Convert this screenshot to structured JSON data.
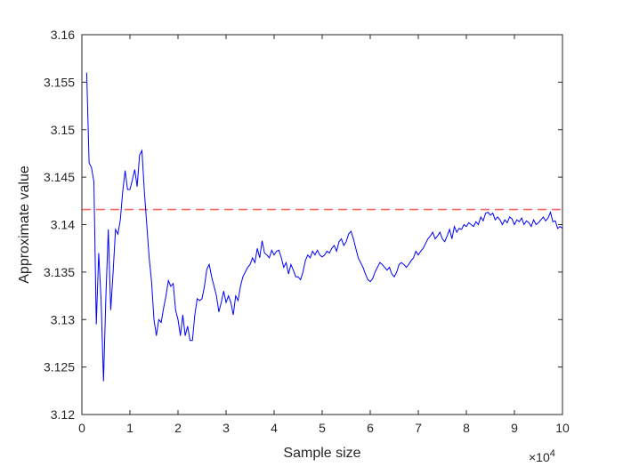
{
  "chart_data": {
    "type": "line",
    "title": "",
    "xlabel": "Sample size",
    "ylabel": "Approximate value",
    "x_exponent_base": "×10",
    "x_exponent_power": "4",
    "xlim": [
      0,
      100000
    ],
    "ylim": [
      3.12,
      3.16
    ],
    "x_ticks": [
      0,
      10000,
      20000,
      30000,
      40000,
      50000,
      60000,
      70000,
      80000,
      90000,
      100000
    ],
    "x_tick_labels": [
      "0",
      "1",
      "2",
      "3",
      "4",
      "5",
      "6",
      "7",
      "8",
      "9",
      "10"
    ],
    "y_ticks": [
      3.12,
      3.125,
      3.13,
      3.135,
      3.14,
      3.145,
      3.15,
      3.155,
      3.16
    ],
    "y_tick_labels": [
      "3.12",
      "3.125",
      "3.13",
      "3.135",
      "3.14",
      "3.145",
      "3.15",
      "3.155",
      "3.16"
    ],
    "grid": false,
    "legend": "none",
    "series": [
      {
        "color": "#0000ff",
        "style": "solid",
        "points": [
          [
            1000,
            3.156
          ],
          [
            1500,
            3.1465
          ],
          [
            2000,
            3.146
          ],
          [
            2500,
            3.1445
          ],
          [
            3000,
            3.1295
          ],
          [
            3500,
            3.137
          ],
          [
            4000,
            3.132
          ],
          [
            4500,
            3.1235
          ],
          [
            5000,
            3.1325
          ],
          [
            5500,
            3.1395
          ],
          [
            6000,
            3.131
          ],
          [
            6500,
            3.135
          ],
          [
            7000,
            3.1395
          ],
          [
            7500,
            3.139
          ],
          [
            8000,
            3.1405
          ],
          [
            8500,
            3.1435
          ],
          [
            9000,
            3.1457
          ],
          [
            9500,
            3.1437
          ],
          [
            10000,
            3.1437
          ],
          [
            10500,
            3.1447
          ],
          [
            11000,
            3.1458
          ],
          [
            11500,
            3.144
          ],
          [
            12000,
            3.1473
          ],
          [
            12500,
            3.1478
          ],
          [
            13000,
            3.1435
          ],
          [
            13500,
            3.14
          ],
          [
            14000,
            3.1365
          ],
          [
            14500,
            3.134
          ],
          [
            15000,
            3.13
          ],
          [
            15500,
            3.1283
          ],
          [
            16000,
            3.13
          ],
          [
            16500,
            3.1297
          ],
          [
            17000,
            3.1312
          ],
          [
            17500,
            3.1325
          ],
          [
            18000,
            3.1341
          ],
          [
            18500,
            3.1335
          ],
          [
            19000,
            3.1338
          ],
          [
            19500,
            3.131
          ],
          [
            20000,
            3.13
          ],
          [
            20500,
            3.1283
          ],
          [
            21000,
            3.1305
          ],
          [
            21500,
            3.1283
          ],
          [
            22000,
            3.1293
          ],
          [
            22500,
            3.1278
          ],
          [
            23000,
            3.1278
          ],
          [
            23500,
            3.1305
          ],
          [
            24000,
            3.1322
          ],
          [
            24500,
            3.132
          ],
          [
            25000,
            3.1322
          ],
          [
            25500,
            3.1335
          ],
          [
            26000,
            3.1353
          ],
          [
            26500,
            3.1358
          ],
          [
            27000,
            3.1345
          ],
          [
            27500,
            3.1335
          ],
          [
            28000,
            3.1325
          ],
          [
            28500,
            3.1308
          ],
          [
            29000,
            3.1318
          ],
          [
            29500,
            3.133
          ],
          [
            30000,
            3.1318
          ],
          [
            30500,
            3.1325
          ],
          [
            31000,
            3.1318
          ],
          [
            31500,
            3.1305
          ],
          [
            32000,
            3.1325
          ],
          [
            32500,
            3.132
          ],
          [
            33000,
            3.1335
          ],
          [
            33500,
            3.1345
          ],
          [
            34000,
            3.135
          ],
          [
            34500,
            3.1355
          ],
          [
            35000,
            3.1358
          ],
          [
            35500,
            3.1365
          ],
          [
            36000,
            3.136
          ],
          [
            36500,
            3.1375
          ],
          [
            37000,
            3.1365
          ],
          [
            37500,
            3.1383
          ],
          [
            38000,
            3.137
          ],
          [
            38500,
            3.1368
          ],
          [
            39000,
            3.1365
          ],
          [
            39500,
            3.1373
          ],
          [
            40000,
            3.1368
          ],
          [
            40500,
            3.1372
          ],
          [
            41000,
            3.1373
          ],
          [
            41500,
            3.1365
          ],
          [
            42000,
            3.1355
          ],
          [
            42500,
            3.136
          ],
          [
            43000,
            3.1348
          ],
          [
            43500,
            3.1358
          ],
          [
            44000,
            3.1352
          ],
          [
            44500,
            3.1345
          ],
          [
            45000,
            3.1345
          ],
          [
            45500,
            3.1342
          ],
          [
            46000,
            3.135
          ],
          [
            46500,
            3.1362
          ],
          [
            47000,
            3.1368
          ],
          [
            47500,
            3.1365
          ],
          [
            48000,
            3.1372
          ],
          [
            48500,
            3.1368
          ],
          [
            49000,
            3.1373
          ],
          [
            49500,
            3.1368
          ],
          [
            50000,
            3.1366
          ],
          [
            50500,
            3.1368
          ],
          [
            51000,
            3.1372
          ],
          [
            51500,
            3.137
          ],
          [
            52000,
            3.1375
          ],
          [
            52500,
            3.1378
          ],
          [
            53000,
            3.1372
          ],
          [
            53500,
            3.1382
          ],
          [
            54000,
            3.1385
          ],
          [
            54500,
            3.1378
          ],
          [
            55000,
            3.1382
          ],
          [
            55500,
            3.139
          ],
          [
            56000,
            3.1393
          ],
          [
            56500,
            3.1385
          ],
          [
            57000,
            3.1375
          ],
          [
            57500,
            3.1365
          ],
          [
            58000,
            3.136
          ],
          [
            58500,
            3.1355
          ],
          [
            59000,
            3.1348
          ],
          [
            59500,
            3.1342
          ],
          [
            60000,
            3.134
          ],
          [
            60500,
            3.1343
          ],
          [
            61000,
            3.135
          ],
          [
            61500,
            3.1355
          ],
          [
            62000,
            3.136
          ],
          [
            62500,
            3.1358
          ],
          [
            63000,
            3.1355
          ],
          [
            63500,
            3.1352
          ],
          [
            64000,
            3.1355
          ],
          [
            64500,
            3.1348
          ],
          [
            65000,
            3.1345
          ],
          [
            65500,
            3.135
          ],
          [
            66000,
            3.1358
          ],
          [
            66500,
            3.136
          ],
          [
            67000,
            3.1358
          ],
          [
            67500,
            3.1355
          ],
          [
            68000,
            3.1358
          ],
          [
            68500,
            3.1362
          ],
          [
            69000,
            3.1365
          ],
          [
            69500,
            3.1372
          ],
          [
            70000,
            3.1368
          ],
          [
            70500,
            3.1372
          ],
          [
            71000,
            3.1375
          ],
          [
            71500,
            3.138
          ],
          [
            72000,
            3.1385
          ],
          [
            72500,
            3.1388
          ],
          [
            73000,
            3.1392
          ],
          [
            73500,
            3.1385
          ],
          [
            74000,
            3.1388
          ],
          [
            74500,
            3.1392
          ],
          [
            75000,
            3.1385
          ],
          [
            75500,
            3.1382
          ],
          [
            76000,
            3.1388
          ],
          [
            76500,
            3.1395
          ],
          [
            77000,
            3.1385
          ],
          [
            77500,
            3.1398
          ],
          [
            78000,
            3.1392
          ],
          [
            78500,
            3.1396
          ],
          [
            79000,
            3.1395
          ],
          [
            79500,
            3.14
          ],
          [
            80000,
            3.1398
          ],
          [
            80500,
            3.1402
          ],
          [
            81000,
            3.14
          ],
          [
            81500,
            3.1398
          ],
          [
            82000,
            3.1403
          ],
          [
            82500,
            3.14
          ],
          [
            83000,
            3.1408
          ],
          [
            83500,
            3.1404
          ],
          [
            84000,
            3.1412
          ],
          [
            84500,
            3.1413
          ],
          [
            85000,
            3.141
          ],
          [
            85500,
            3.1412
          ],
          [
            86000,
            3.1405
          ],
          [
            86500,
            3.1408
          ],
          [
            87000,
            3.1405
          ],
          [
            87500,
            3.14
          ],
          [
            88000,
            3.1405
          ],
          [
            88500,
            3.1402
          ],
          [
            89000,
            3.1408
          ],
          [
            89500,
            3.1406
          ],
          [
            90000,
            3.14
          ],
          [
            90500,
            3.1405
          ],
          [
            91000,
            3.1403
          ],
          [
            91500,
            3.1407
          ],
          [
            92000,
            3.14
          ],
          [
            92500,
            3.1404
          ],
          [
            93000,
            3.1402
          ],
          [
            93500,
            3.1398
          ],
          [
            94000,
            3.1405
          ],
          [
            94500,
            3.14
          ],
          [
            95000,
            3.1402
          ],
          [
            95500,
            3.1405
          ],
          [
            96000,
            3.1408
          ],
          [
            96500,
            3.1404
          ],
          [
            97000,
            3.1407
          ],
          [
            97500,
            3.1413
          ],
          [
            98000,
            3.1403
          ],
          [
            98500,
            3.1404
          ],
          [
            99000,
            3.1396
          ],
          [
            99500,
            3.1398
          ],
          [
            100000,
            3.1396
          ]
        ]
      },
      {
        "color": "#ff0000",
        "style": "dashed",
        "reference_value": 3.14159,
        "points": [
          [
            0,
            3.14159
          ],
          [
            100000,
            3.14159
          ]
        ]
      }
    ]
  }
}
